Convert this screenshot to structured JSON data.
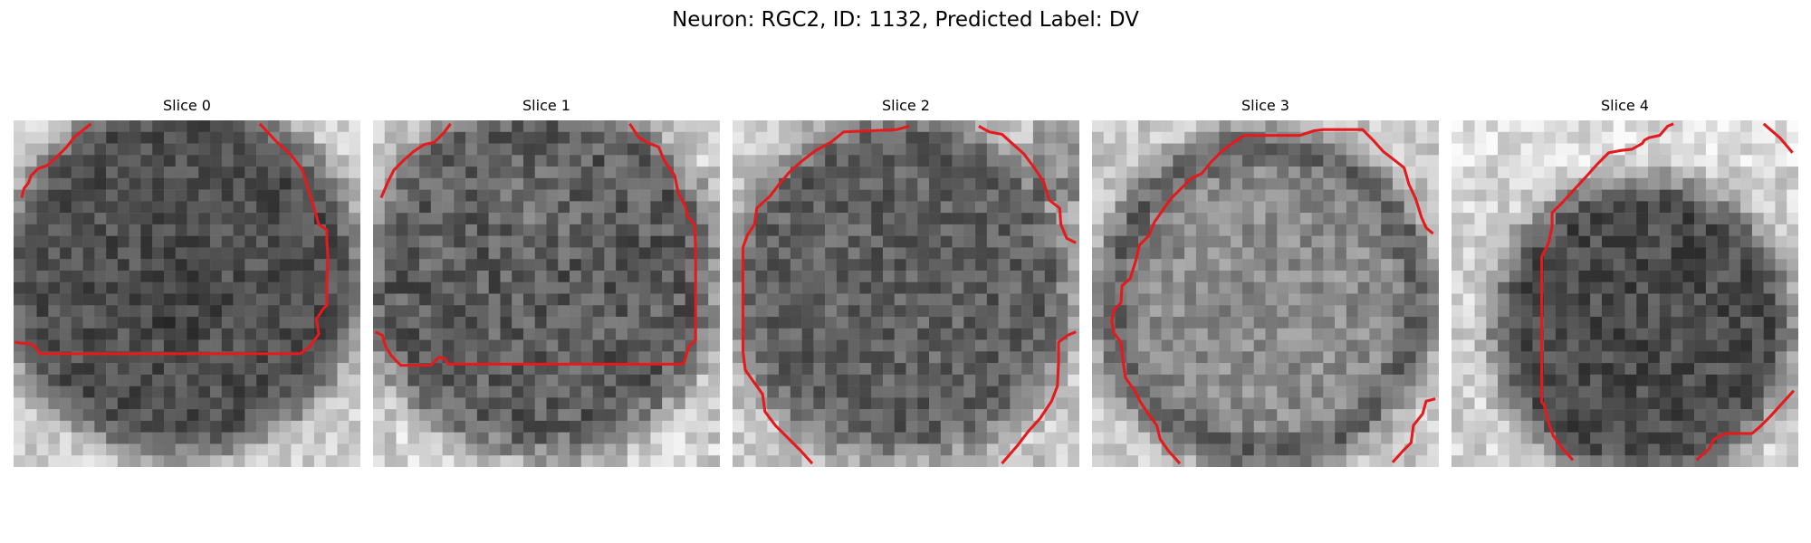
{
  "figure": {
    "title": "Neuron: RGC2, ID: 1132, Predicted Label: DV"
  },
  "colors": {
    "contour": "#e41a1c",
    "background": "#ffffff"
  },
  "slices": [
    {
      "title": "Slice 0"
    },
    {
      "title": "Slice 1"
    },
    {
      "title": "Slice 2"
    },
    {
      "title": "Slice 3"
    },
    {
      "title": "Slice 4"
    }
  ]
}
